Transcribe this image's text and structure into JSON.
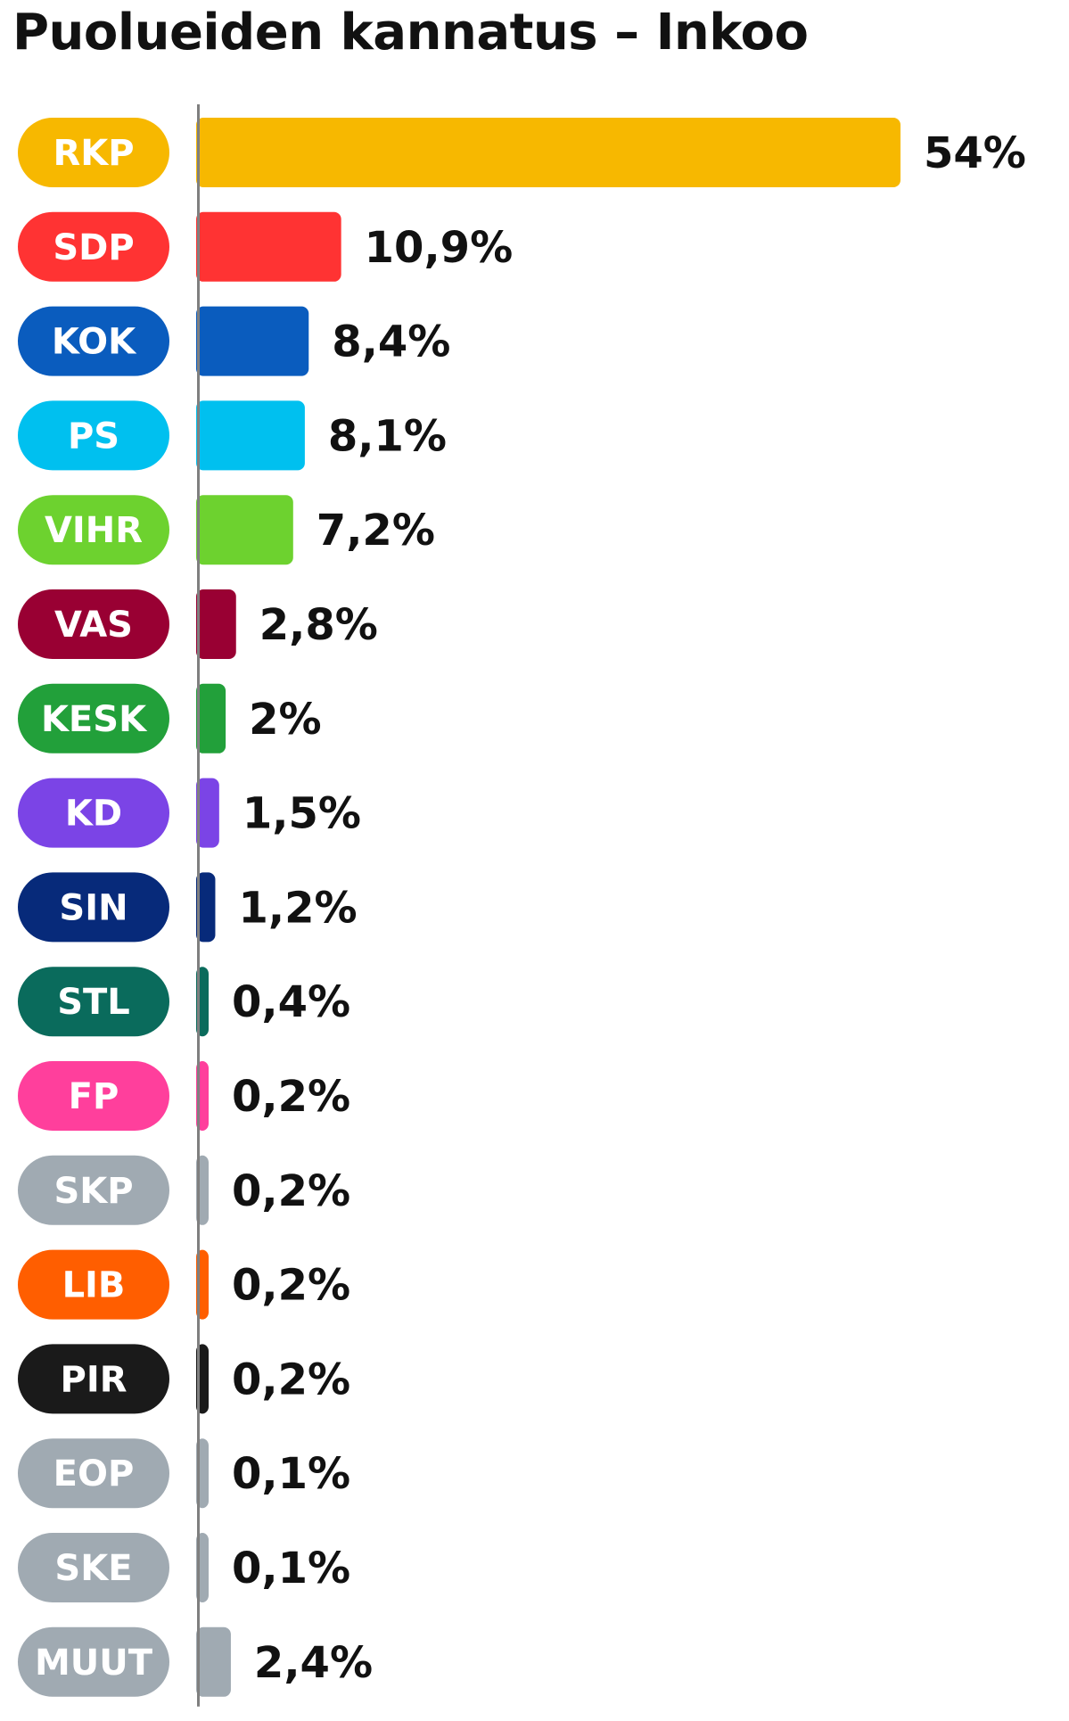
{
  "chart_data": {
    "type": "bar",
    "orientation": "horizontal",
    "title": "Puolueiden kannatus – Inkoo",
    "categories": [
      "RKP",
      "SDP",
      "KOK",
      "PS",
      "VIHR",
      "VAS",
      "KESK",
      "KD",
      "SIN",
      "STL",
      "FP",
      "SKP",
      "LIB",
      "PIR",
      "EOP",
      "SKE",
      "MUUT"
    ],
    "values": [
      54,
      10.9,
      8.4,
      8.1,
      7.2,
      2.8,
      2.0,
      1.5,
      1.2,
      0.4,
      0.2,
      0.2,
      0.2,
      0.2,
      0.1,
      0.1,
      2.4
    ],
    "value_labels": [
      "54%",
      "10,9%",
      "8,4%",
      "8,1%",
      "7,2%",
      "2,8%",
      "2%",
      "1,5%",
      "1,2%",
      "0,4%",
      "0,2%",
      "0,2%",
      "0,2%",
      "0,2%",
      "0,1%",
      "0,1%",
      "2,4%"
    ],
    "colors": [
      "#f7b800",
      "#ff3333",
      "#0a5cbe",
      "#00c0ef",
      "#6dd22f",
      "#990033",
      "#22a03a",
      "#7b44e6",
      "#072a7a",
      "#0a6b5c",
      "#ff3f9c",
      "#a0aab2",
      "#ff5e00",
      "#1a1a1a",
      "#a0aab2",
      "#a0aab2",
      "#a0aab2"
    ],
    "xlim": [
      0,
      54
    ],
    "grid": false,
    "legend": "none"
  }
}
